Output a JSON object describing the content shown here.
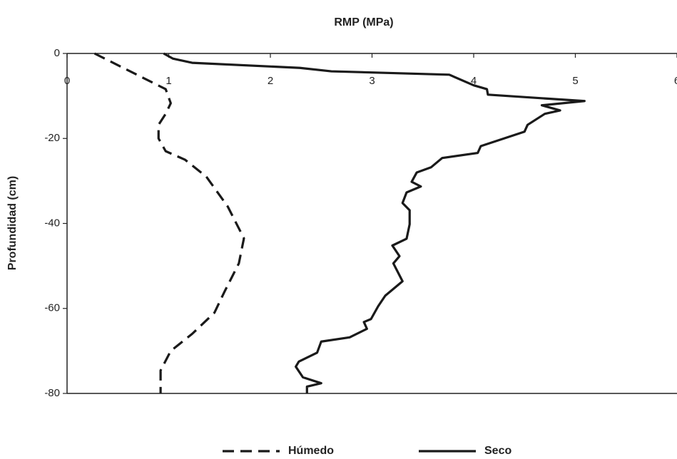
{
  "chart_data": {
    "type": "line",
    "title": "RMP (MPa)",
    "y_label": "Profundidad (cm)",
    "xlim": [
      0,
      6
    ],
    "xticks": [
      0,
      1,
      2,
      3,
      4,
      5,
      6
    ],
    "ylim": [
      -80,
      0
    ],
    "yticks": [
      0,
      -20,
      -40,
      -60,
      -80
    ],
    "series": [
      {
        "name": "Húmedo",
        "color": "#1a1a1a",
        "dashed": true,
        "x": [
          0.27,
          0.97,
          1.02,
          0.97,
          0.9,
          0.9,
          0.97,
          1.16,
          1.37,
          1.58,
          1.74,
          1.69,
          1.55,
          1.45,
          1.23,
          1.02,
          0.92,
          0.92
        ],
        "values": [
          0,
          -8.4,
          -11.7,
          -14.2,
          -16.8,
          -20,
          -23,
          -25,
          -29,
          -36,
          -43.5,
          -49.4,
          -56,
          -61,
          -66,
          -70,
          -74.6,
          -80
        ]
      },
      {
        "name": "Seco",
        "color": "#1a1a1a",
        "dashed": false,
        "x": [
          0.95,
          1.04,
          1.23,
          2.29,
          2.6,
          3.76,
          4.0,
          4.13,
          4.14,
          5.09,
          4.67,
          4.85,
          4.7,
          4.53,
          4.5,
          4.07,
          4.04,
          3.69,
          3.58,
          3.44,
          3.39,
          3.48,
          3.34,
          3.3,
          3.37,
          3.37,
          3.34,
          3.2,
          3.27,
          3.21,
          3.3,
          3.13,
          3.06,
          2.99,
          2.92,
          2.95,
          2.78,
          2.5,
          2.46,
          2.28,
          2.25,
          2.32,
          2.5,
          2.36,
          2.36
        ],
        "values": [
          0,
          -1.2,
          -2.2,
          -3.4,
          -4.2,
          -5,
          -7.5,
          -8.4,
          -9.7,
          -11.2,
          -12.2,
          -13.4,
          -14.2,
          -16.8,
          -18.4,
          -21.8,
          -23.4,
          -24.6,
          -26.8,
          -28,
          -30.2,
          -31.3,
          -32.7,
          -35.2,
          -36.9,
          -40.2,
          -43.6,
          -45.2,
          -47.7,
          -49.4,
          -53.6,
          -57,
          -59.5,
          -62.5,
          -63.2,
          -64.8,
          -66.8,
          -67.8,
          -70.4,
          -72.5,
          -73.7,
          -76.2,
          -77.6,
          -78.4,
          -80
        ]
      }
    ]
  }
}
